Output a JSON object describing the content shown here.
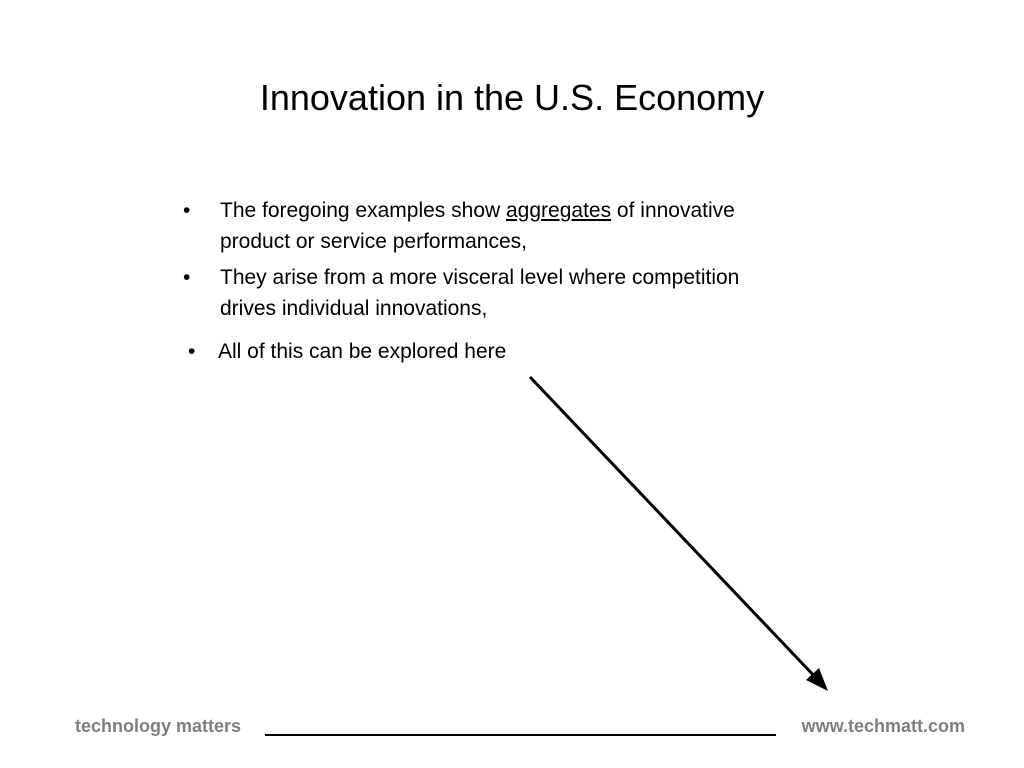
{
  "slide": {
    "title": "Innovation in the U.S. Economy",
    "bullets": [
      {
        "before": "The foregoing examples show ",
        "emphasis": "aggregates",
        "after": " of innovative product or service performances,"
      },
      {
        "text": "They arise from a more visceral level where competition drives individual innovations,"
      },
      {
        "text": "All of this can be explored here"
      }
    ],
    "bullet_symbol": "•"
  },
  "footer": {
    "left": "technology matters",
    "right": "www.techmatt.com"
  },
  "colors": {
    "footer_text": "#7f7f7f",
    "arrow": "#000000"
  },
  "icons": {
    "arrow": "diagonal-arrow-icon"
  }
}
